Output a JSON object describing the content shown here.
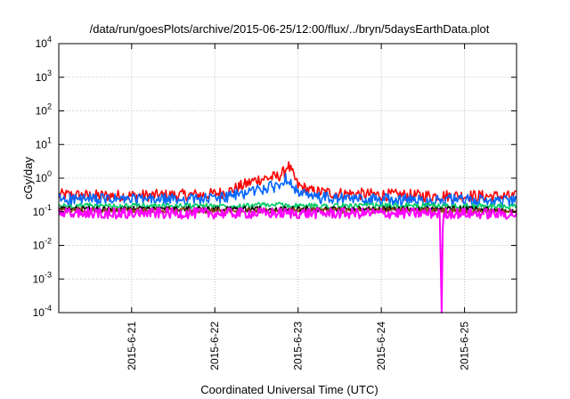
{
  "chart_data": {
    "type": "line",
    "title": "/data/run/goesPlots/archive/2015-06-25/12:00/flux/../bryn/5daysEarthData.plot",
    "xlabel": "Coordinated Universal Time (UTC)",
    "ylabel": "cGy/day",
    "yscale": "log",
    "ylim": [
      0.0001,
      10000
    ],
    "xlim": [
      "2015-06-20 03:00",
      "2015-06-25 15:00"
    ],
    "grid": true,
    "y_ticks": [
      {
        "base": "10",
        "exp": "4",
        "value": 10000
      },
      {
        "base": "10",
        "exp": "3",
        "value": 1000
      },
      {
        "base": "10",
        "exp": "2",
        "value": 100
      },
      {
        "base": "10",
        "exp": "1",
        "value": 10
      },
      {
        "base": "10",
        "exp": "0",
        "value": 1
      },
      {
        "base": "10",
        "exp": "-1",
        "value": 0.1
      },
      {
        "base": "10",
        "exp": "-2",
        "value": 0.01
      },
      {
        "base": "10",
        "exp": "-3",
        "value": 0.001
      },
      {
        "base": "10",
        "exp": "-4",
        "value": 0.0001
      }
    ],
    "x_ticks": [
      {
        "label": "2015-6-21",
        "value": "2015-06-21 00:00"
      },
      {
        "label": "2015-6-22",
        "value": "2015-06-22 00:00"
      },
      {
        "label": "2015-6-23",
        "value": "2015-06-23 00:00"
      },
      {
        "label": "2015-6-24",
        "value": "2015-06-24 00:00"
      },
      {
        "label": "2015-6-25",
        "value": "2015-06-25 00:00"
      }
    ],
    "series": [
      {
        "color": "#ff0000",
        "x": [
          "2015-06-20 03:00",
          "2015-06-20 12:00",
          "2015-06-21 00:00",
          "2015-06-21 12:00",
          "2015-06-21 22:00",
          "2015-06-22 04:00",
          "2015-06-22 08:00",
          "2015-06-22 12:00",
          "2015-06-22 15:00",
          "2015-06-22 18:00",
          "2015-06-22 20:00",
          "2015-06-22 21:00",
          "2015-06-22 22:00",
          "2015-06-23 00:00",
          "2015-06-23 04:00",
          "2015-06-23 12:00",
          "2015-06-24 00:00",
          "2015-06-24 12:00",
          "2015-06-25 00:00",
          "2015-06-25 15:00"
        ],
        "y": [
          0.32,
          0.3,
          0.3,
          0.31,
          0.32,
          0.4,
          0.6,
          0.9,
          1.0,
          1.1,
          1.5,
          2.5,
          1.6,
          0.6,
          0.4,
          0.35,
          0.32,
          0.3,
          0.3,
          0.28
        ]
      },
      {
        "color": "#0066ff",
        "x": [
          "2015-06-20 03:00",
          "2015-06-20 12:00",
          "2015-06-21 00:00",
          "2015-06-21 12:00",
          "2015-06-21 22:00",
          "2015-06-22 04:00",
          "2015-06-22 08:00",
          "2015-06-22 12:00",
          "2015-06-22 15:00",
          "2015-06-22 18:00",
          "2015-06-22 20:00",
          "2015-06-22 21:00",
          "2015-06-22 22:00",
          "2015-06-23 00:00",
          "2015-06-23 04:00",
          "2015-06-23 12:00",
          "2015-06-24 00:00",
          "2015-06-24 12:00",
          "2015-06-25 00:00",
          "2015-06-25 15:00"
        ],
        "y": [
          0.24,
          0.23,
          0.23,
          0.23,
          0.24,
          0.28,
          0.35,
          0.45,
          0.5,
          0.6,
          0.8,
          1.1,
          0.8,
          0.35,
          0.27,
          0.24,
          0.23,
          0.22,
          0.22,
          0.2
        ]
      },
      {
        "color": "#00cc66",
        "x": [
          "2015-06-20 03:00",
          "2015-06-21 00:00",
          "2015-06-22 00:00",
          "2015-06-22 18:00",
          "2015-06-23 00:00",
          "2015-06-24 00:00",
          "2015-06-25 00:00",
          "2015-06-25 15:00"
        ],
        "y": [
          0.15,
          0.15,
          0.15,
          0.16,
          0.15,
          0.15,
          0.15,
          0.14
        ]
      },
      {
        "color": "#000000",
        "x": [
          "2015-06-20 03:00",
          "2015-06-21 00:00",
          "2015-06-22 00:00",
          "2015-06-23 00:00",
          "2015-06-24 00:00",
          "2015-06-25 00:00",
          "2015-06-25 15:00"
        ],
        "y": [
          0.12,
          0.12,
          0.12,
          0.12,
          0.12,
          0.12,
          0.11
        ]
      },
      {
        "color": "#8b4513",
        "x": [
          "2015-06-20 03:00",
          "2015-06-21 00:00",
          "2015-06-22 00:00",
          "2015-06-23 00:00",
          "2015-06-24 00:00",
          "2015-06-25 00:00",
          "2015-06-25 15:00"
        ],
        "y": [
          0.11,
          0.11,
          0.11,
          0.11,
          0.11,
          0.11,
          0.1
        ]
      },
      {
        "color": "#ff00ff",
        "x": [
          "2015-06-20 03:00",
          "2015-06-21 00:00",
          "2015-06-22 00:00",
          "2015-06-23 00:00",
          "2015-06-24 00:00",
          "2015-06-24 17:00",
          "2015-06-24 17:15",
          "2015-06-24 17:30",
          "2015-06-24 17:45",
          "2015-06-25 00:00",
          "2015-06-25 15:00"
        ],
        "y": [
          0.09,
          0.09,
          0.09,
          0.09,
          0.09,
          0.09,
          0.0001,
          0.0001,
          0.09,
          0.09,
          0.085
        ]
      }
    ]
  }
}
